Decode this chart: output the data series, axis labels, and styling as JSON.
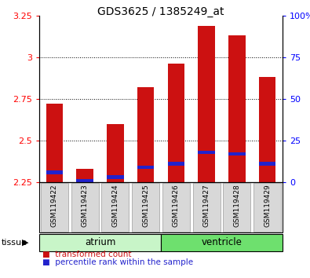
{
  "title": "GDS3625 / 1385249_at",
  "samples": [
    "GSM119422",
    "GSM119423",
    "GSM119424",
    "GSM119425",
    "GSM119426",
    "GSM119427",
    "GSM119428",
    "GSM119429"
  ],
  "red_tops": [
    2.72,
    2.33,
    2.6,
    2.82,
    2.96,
    3.19,
    3.13,
    2.88
  ],
  "blue_markers": [
    2.31,
    2.26,
    2.28,
    2.34,
    2.36,
    2.43,
    2.42,
    2.36
  ],
  "ymin": 2.25,
  "ymax": 3.25,
  "yticks": [
    2.25,
    2.5,
    2.75,
    3.0,
    3.25
  ],
  "ytick_labels": [
    "2.25",
    "2.5",
    "2.75",
    "3",
    "3.25"
  ],
  "right_yticks": [
    0,
    25,
    50,
    75,
    100
  ],
  "right_ytick_labels": [
    "0",
    "25",
    "50",
    "75",
    "100%"
  ],
  "tissue_groups": [
    {
      "label": "atrium",
      "start": 0,
      "end": 3,
      "color": "#c8f5c8"
    },
    {
      "label": "ventricle",
      "start": 4,
      "end": 7,
      "color": "#6ee06e"
    }
  ],
  "bar_color": "#cc1111",
  "blue_color": "#2222cc",
  "bar_width": 0.55,
  "plot_bg": "white",
  "fig_w": 3.95,
  "fig_h": 3.54,
  "dpi": 100
}
